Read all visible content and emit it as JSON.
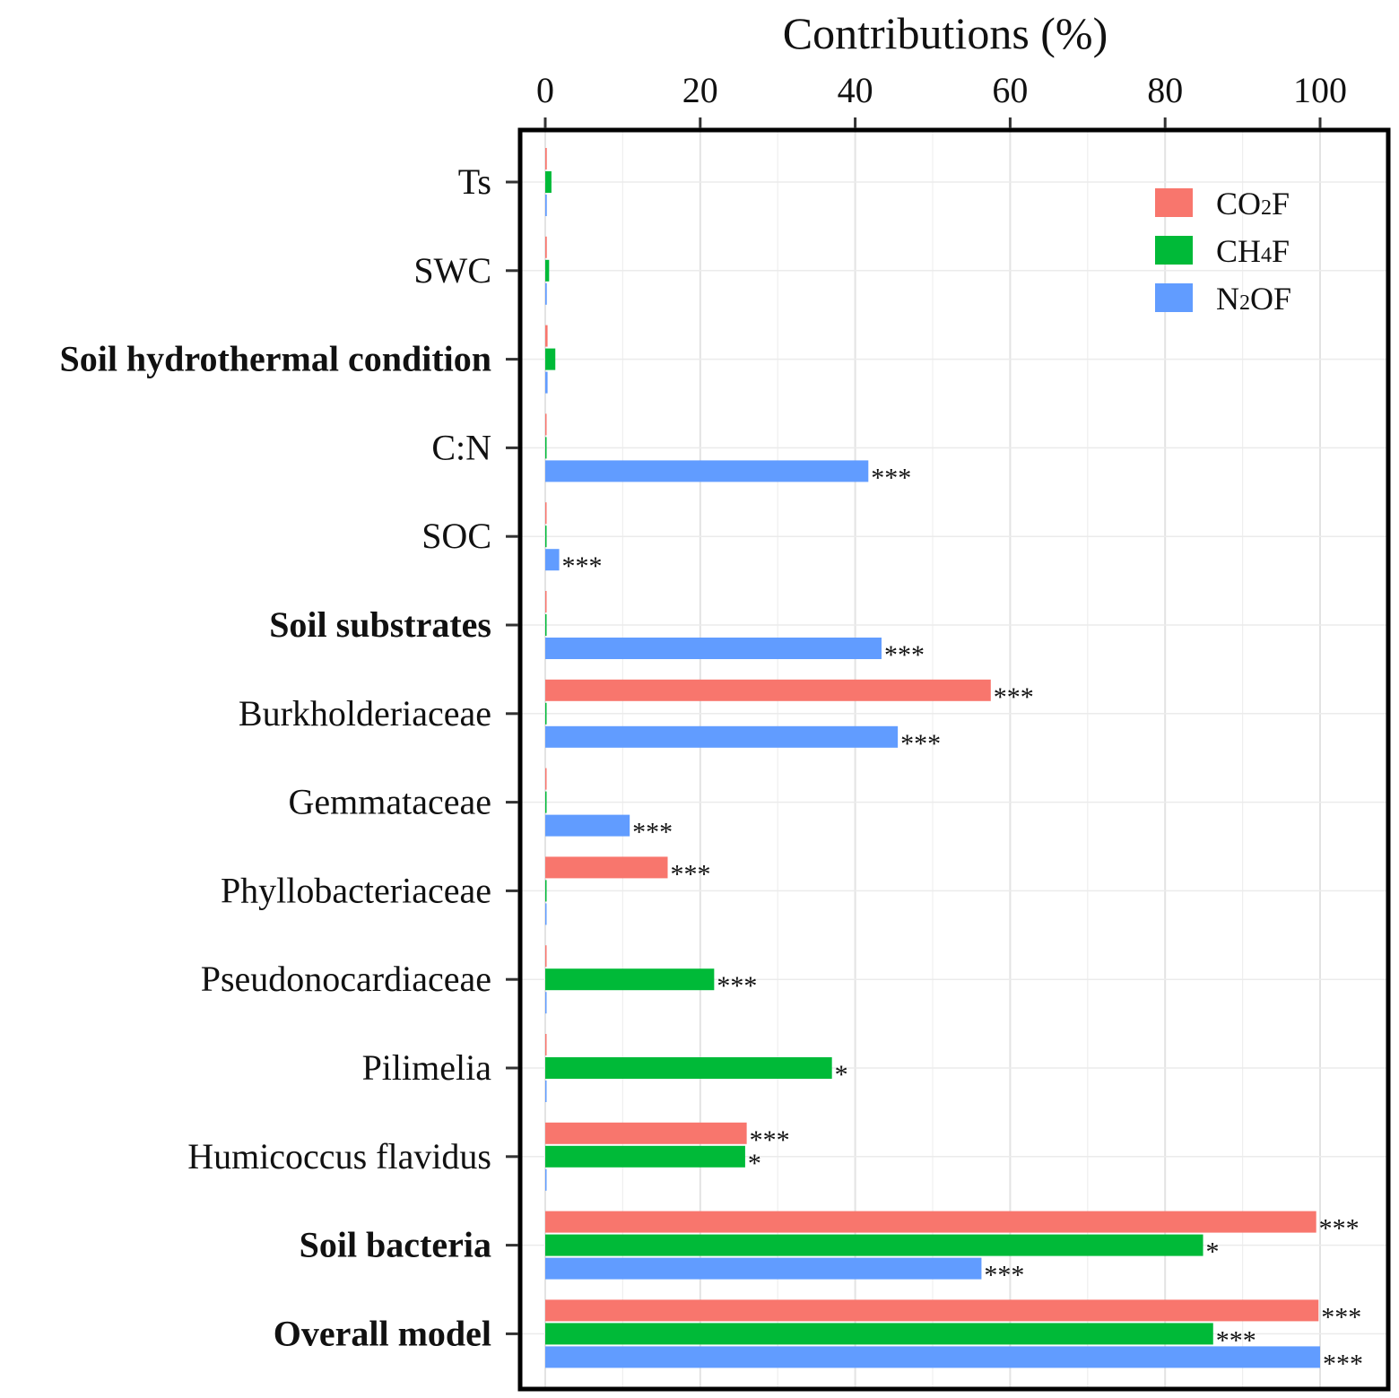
{
  "chart_data": {
    "type": "bar",
    "orientation": "horizontal",
    "title": "",
    "xlabel": "Contributions (%)",
    "ylabel": "",
    "xlim": [
      0,
      105
    ],
    "x_ticks": [
      0,
      20,
      40,
      60,
      80,
      100
    ],
    "x_axis_position": "top",
    "grid": true,
    "legend_position": "top-right",
    "categories": [
      {
        "label": "Ts",
        "group": false
      },
      {
        "label": "SWC",
        "group": false
      },
      {
        "label": "Soil hydrothermal condition",
        "group": true
      },
      {
        "label": "C:N",
        "group": false
      },
      {
        "label": "SOC",
        "group": false
      },
      {
        "label": "Soil substrates",
        "group": true
      },
      {
        "label": "Burkholderiaceae",
        "group": false
      },
      {
        "label": "Gemmataceae",
        "group": false
      },
      {
        "label": "Phyllobacteriaceae",
        "group": false
      },
      {
        "label": "Pseudonocardiaceae",
        "group": false
      },
      {
        "label": "Pilimelia",
        "group": false
      },
      {
        "label": "Humicoccus flavidus",
        "group": false
      },
      {
        "label": "Soil bacteria",
        "group": true
      },
      {
        "label": "Overall model",
        "group": true
      }
    ],
    "series": [
      {
        "name": "CO2F",
        "legend_main": "CO",
        "legend_sub": "2",
        "legend_tail": "F",
        "color": "#F8766D",
        "values": [
          0.2,
          0.2,
          0.3,
          0.1,
          0.1,
          0.1,
          57.5,
          0.1,
          15.8,
          0.1,
          0.1,
          26.0,
          99.5,
          99.8
        ],
        "significance": [
          "",
          "",
          "",
          "",
          "",
          "",
          "***",
          "",
          "***",
          "",
          "",
          "***",
          "***",
          "***"
        ]
      },
      {
        "name": "CH4F",
        "legend_main": "CH",
        "legend_sub": "4",
        "legend_tail": "F",
        "color": "#00BA38",
        "values": [
          0.8,
          0.5,
          1.3,
          0.1,
          0.1,
          0.1,
          0.1,
          0.1,
          0.1,
          21.8,
          37.0,
          25.8,
          84.9,
          86.2
        ],
        "significance": [
          "",
          "",
          "",
          "",
          "",
          "",
          "",
          "",
          "",
          "***",
          "*",
          "*",
          "*",
          "***"
        ]
      },
      {
        "name": "N2OF",
        "legend_main": "N",
        "legend_sub": "2",
        "legend_tail": "OF",
        "color": "#619CFF",
        "values": [
          0.2,
          0.2,
          0.3,
          41.7,
          1.8,
          43.4,
          45.5,
          10.9,
          0.1,
          0.1,
          0.1,
          0.1,
          56.3,
          100.0
        ],
        "significance": [
          "",
          "",
          "",
          "***",
          "***",
          "***",
          "***",
          "***",
          "",
          "",
          "",
          "",
          "***",
          "***"
        ]
      }
    ]
  }
}
